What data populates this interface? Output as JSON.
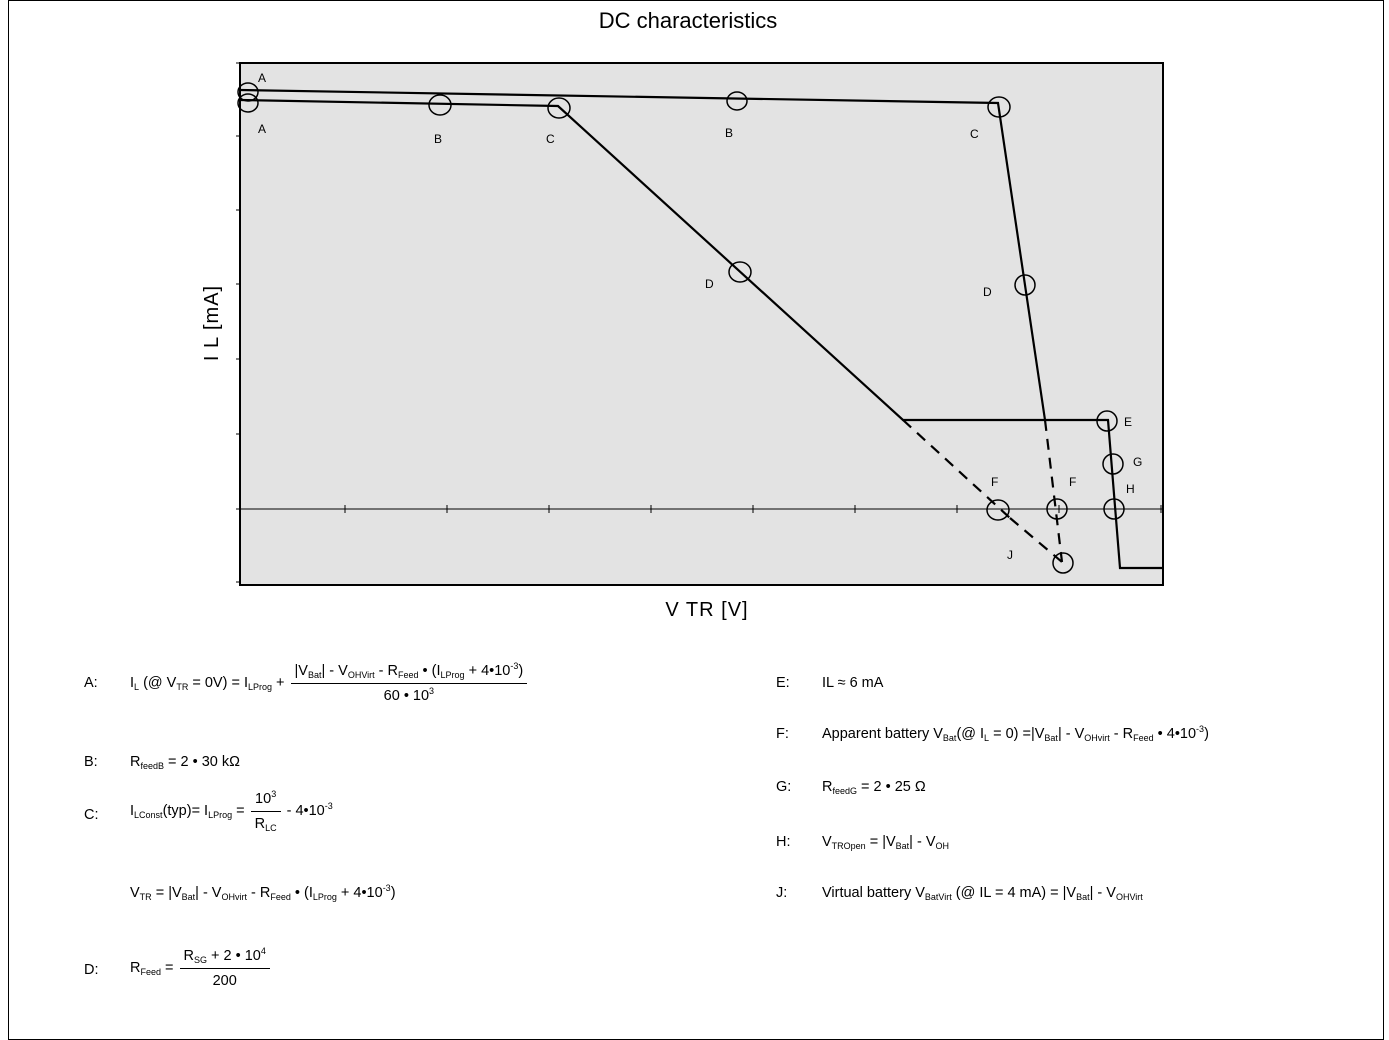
{
  "title": "DC characteristics",
  "y_axis_label": "I L [mA]",
  "x_axis_label": "V TR [V]",
  "colors": {
    "plot_bg": "#e3e3e3",
    "line": "#000000"
  },
  "point_labels": {
    "A": "A",
    "B": "B",
    "C": "C",
    "D": "D",
    "E": "E",
    "F": "F",
    "G": "G",
    "H": "H",
    "J": "J"
  },
  "equations": {
    "A": {
      "key": "A:",
      "lhs": [
        "I",
        "L",
        " (@ V",
        "TR",
        " = 0V) = I",
        "LProg",
        " +"
      ],
      "num": [
        "|V",
        "Bat",
        "| - V",
        "OHVirt",
        " - R",
        "Feed",
        " • (I",
        "LProg",
        " + 4•10",
        "-3",
        ")"
      ],
      "den": [
        "60 • 10",
        "3"
      ]
    },
    "B": {
      "key": "B:",
      "parts": [
        "R",
        "feedB",
        " = 2 • 30 kΩ"
      ]
    },
    "C": {
      "key": "C:",
      "lhs": [
        "I",
        "LConst",
        "(typ)= I",
        "LProg",
        " ="
      ],
      "num": [
        "10",
        "3"
      ],
      "den": [
        "R",
        "LC"
      ],
      "tail": [
        "- 4•10",
        "-3"
      ]
    },
    "C2": {
      "parts": [
        "V",
        "TR",
        " = |V",
        "Bat",
        "| - V",
        "OHvirt",
        " - R",
        "Feed",
        " • (I",
        "LProg",
        " + 4•10",
        "-3",
        ")"
      ]
    },
    "D": {
      "key": "D:",
      "lhs": [
        "R",
        "Feed",
        " ="
      ],
      "num": [
        "R",
        "SG",
        " + 2 • 10",
        "4"
      ],
      "den": [
        "200"
      ]
    },
    "E": {
      "key": "E:",
      "parts": [
        "IL ≈ 6 mA"
      ]
    },
    "F": {
      "key": "F:",
      "parts": [
        "Apparent battery V",
        "Bat",
        "(@ I",
        "L",
        " = 0) =|V",
        "Bat",
        "| - V",
        "OHvirt",
        " - R",
        "Feed",
        " • 4•10",
        "-3",
        ")"
      ]
    },
    "G": {
      "key": "G:",
      "parts": [
        "R",
        "feedG",
        " = 2 • 25 Ω"
      ]
    },
    "H": {
      "key": "H:",
      "parts": [
        "V",
        "TROpen",
        " = |V",
        "Bat",
        "| - V",
        "OH"
      ]
    },
    "J": {
      "key": "J:",
      "parts": [
        "Virtual battery V",
        "BatVirt",
        " (@ IL = 4 mA) = |V",
        "Bat",
        "| - V",
        "OHVirt"
      ]
    }
  }
}
